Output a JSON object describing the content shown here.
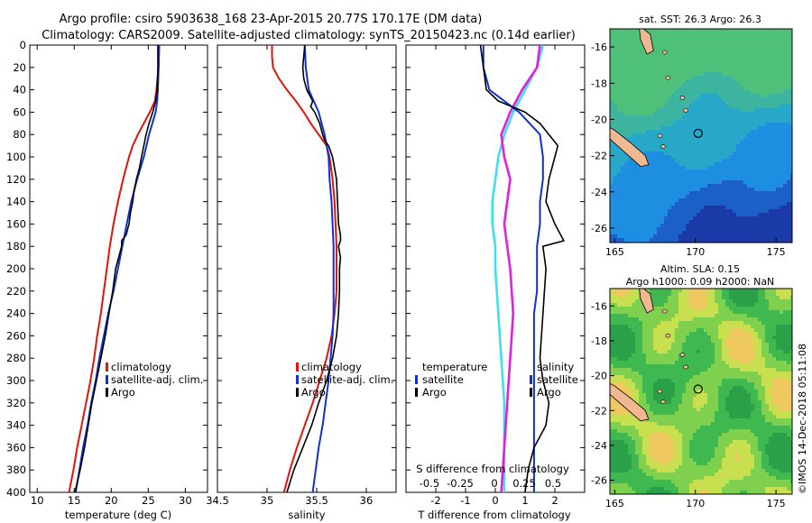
{
  "title": {
    "line1": "Argo profile: csiro 5903638_168 23-Apr-2015 20.77S 170.17E (DM data)",
    "line2": "Climatology: CARS2009. Satellite-adjusted climatology: synTS_20150423.nc (0.14d earlier)"
  },
  "watermark": "©IMOS 14-Dec-2018 05:11:08",
  "colors": {
    "climatology": "#e0140a",
    "satellite": "#1030d0",
    "argo": "#000000",
    "t_diff": "#3fe0e8",
    "s_diff": "#e020e0"
  },
  "chart_data": [
    {
      "type": "line",
      "id": "temperature",
      "xlabel": "temperature (deg C)",
      "ylabel": "depth",
      "xlim": [
        9,
        33
      ],
      "ylim": [
        400,
        0
      ],
      "x_ticks": [
        10,
        15,
        20,
        25,
        30
      ],
      "y_ticks": [
        0,
        20,
        40,
        60,
        80,
        100,
        120,
        140,
        160,
        180,
        200,
        220,
        240,
        260,
        280,
        300,
        320,
        340,
        360,
        380,
        400
      ],
      "legend": [
        "climatology",
        "satellite-adj. clim.",
        "Argo"
      ],
      "series": [
        {
          "name": "climatology",
          "depth": [
            0,
            20,
            40,
            50,
            60,
            70,
            80,
            90,
            100,
            120,
            140,
            160,
            180,
            200,
            220,
            240,
            260,
            280,
            300,
            320,
            340,
            360,
            380,
            400
          ],
          "values": [
            26.5,
            26.4,
            26.1,
            25.9,
            25.2,
            24.4,
            23.6,
            22.9,
            22.4,
            21.6,
            20.9,
            20.3,
            19.8,
            19.4,
            19.0,
            18.6,
            18.1,
            17.7,
            17.2,
            16.6,
            16.0,
            15.4,
            14.9,
            14.3
          ]
        },
        {
          "name": "satellite-adj. clim.",
          "depth": [
            0,
            20,
            40,
            50,
            60,
            80,
            100,
            120,
            140,
            160,
            180,
            200,
            220,
            240,
            260,
            280,
            300,
            320,
            340,
            360,
            380,
            400
          ],
          "values": [
            26.4,
            26.4,
            26.3,
            26.2,
            26.0,
            25.1,
            24.4,
            23.5,
            22.7,
            22.1,
            21.5,
            20.9,
            20.3,
            19.6,
            19.0,
            18.4,
            17.9,
            17.3,
            16.8,
            16.2,
            15.7,
            15.2
          ]
        },
        {
          "name": "Argo",
          "depth": [
            0,
            20,
            40,
            50,
            60,
            70,
            80,
            90,
            100,
            110,
            120,
            130,
            140,
            150,
            160,
            170,
            175,
            180,
            190,
            200,
            220,
            240,
            260,
            280,
            300,
            320,
            340,
            360,
            380,
            400
          ],
          "values": [
            26.3,
            26.3,
            26.2,
            26.0,
            25.6,
            25.1,
            24.7,
            24.4,
            24.1,
            23.8,
            23.4,
            23.1,
            22.9,
            22.6,
            22.4,
            22.0,
            21.4,
            21.4,
            21.0,
            20.6,
            20.2,
            19.7,
            19.2,
            18.6,
            18.0,
            17.4,
            16.9,
            16.4,
            15.8,
            15.1
          ]
        }
      ]
    },
    {
      "type": "line",
      "id": "salinity",
      "xlabel": "salinity",
      "xlim": [
        34.5,
        36.3
      ],
      "ylim": [
        400,
        0
      ],
      "x_ticks": [
        34.5,
        35,
        35.5,
        36
      ],
      "legend": [
        "climatology",
        "satellite-adj. clim.",
        "Argo"
      ],
      "series": [
        {
          "name": "climatology",
          "depth": [
            0,
            10,
            20,
            30,
            40,
            50,
            60,
            70,
            80,
            90,
            100,
            120,
            140,
            160,
            180,
            200,
            220,
            240,
            260,
            280,
            300,
            320,
            340,
            360,
            380,
            400
          ],
          "values": [
            35.05,
            35.05,
            35.06,
            35.12,
            35.2,
            35.29,
            35.37,
            35.44,
            35.52,
            35.6,
            35.63,
            35.66,
            35.68,
            35.69,
            35.7,
            35.7,
            35.7,
            35.68,
            35.65,
            35.6,
            35.53,
            35.46,
            35.38,
            35.3,
            35.23,
            35.17
          ]
        },
        {
          "name": "satellite-adj. clim.",
          "depth": [
            0,
            20,
            40,
            50,
            60,
            80,
            100,
            120,
            140,
            160,
            180,
            200,
            220,
            240,
            260,
            280,
            300,
            320,
            340,
            360,
            380,
            400
          ],
          "values": [
            35.38,
            35.39,
            35.42,
            35.47,
            35.52,
            35.58,
            35.62,
            35.63,
            35.65,
            35.66,
            35.67,
            35.67,
            35.67,
            35.67,
            35.66,
            35.64,
            35.62,
            35.59,
            35.56,
            35.52,
            35.49,
            35.46
          ]
        },
        {
          "name": "Argo",
          "depth": [
            0,
            10,
            20,
            30,
            40,
            50,
            55,
            60,
            70,
            80,
            85,
            90,
            95,
            100,
            110,
            120,
            140,
            160,
            170,
            175,
            180,
            190,
            200,
            220,
            240,
            260,
            280,
            300,
            320,
            340,
            360,
            380,
            400
          ],
          "values": [
            35.38,
            35.37,
            35.36,
            35.37,
            35.4,
            35.46,
            35.44,
            35.48,
            35.53,
            35.56,
            35.58,
            35.62,
            35.64,
            35.66,
            35.68,
            35.7,
            35.71,
            35.72,
            35.74,
            35.74,
            35.72,
            35.74,
            35.73,
            35.73,
            35.72,
            35.7,
            35.66,
            35.6,
            35.52,
            35.45,
            35.36,
            35.27,
            35.2
          ]
        }
      ]
    },
    {
      "type": "line",
      "id": "difference",
      "xlabel": "T difference from climatology",
      "top_axis_label": "S difference from climatology",
      "xlim": [
        -3,
        3
      ],
      "x_ticks": [
        -2,
        -1,
        0,
        1,
        2
      ],
      "s_ticks": [
        "-0.5",
        "-0.25",
        "0",
        "0.25",
        "0.5"
      ],
      "ylim": [
        400,
        0
      ],
      "legend": {
        "left_title": "temperature",
        "right_title": "salinity",
        "rows": [
          "satellite",
          "Argo"
        ]
      },
      "series": [
        {
          "name": "temperature satellite",
          "depth": [
            0,
            20,
            40,
            50,
            60,
            80,
            100,
            120,
            140,
            160,
            180,
            200,
            220,
            240,
            260,
            280,
            300,
            320,
            340,
            360,
            380,
            400
          ],
          "values": [
            -0.4,
            -0.4,
            -0.2,
            0.3,
            0.8,
            1.5,
            1.6,
            1.6,
            1.5,
            1.5,
            1.4,
            1.4,
            1.4,
            1.3,
            1.3,
            1.3,
            1.3,
            1.3,
            1.3,
            1.3,
            1.3,
            1.3
          ]
        },
        {
          "name": "temperature Argo",
          "depth": [
            0,
            20,
            40,
            50,
            60,
            70,
            80,
            90,
            100,
            120,
            140,
            160,
            175,
            180,
            200,
            240,
            280,
            300,
            320,
            340,
            360,
            380,
            400
          ],
          "values": [
            -0.5,
            -0.4,
            -0.3,
            0.1,
            1.0,
            1.5,
            1.8,
            2.1,
            2.0,
            1.8,
            1.7,
            2.0,
            2.3,
            1.6,
            1.7,
            1.6,
            1.5,
            1.6,
            1.8,
            1.7,
            1.3,
            1.1,
            1.0
          ]
        },
        {
          "name": "salinity satellite (T-diff scale)",
          "depth": [
            0,
            20,
            40,
            60,
            80,
            100,
            120,
            140,
            160,
            180,
            200,
            240,
            280,
            320,
            360,
            400
          ],
          "values": [
            1.6,
            1.4,
            1.0,
            0.6,
            0.3,
            0.1,
            0.0,
            -0.1,
            -0.1,
            0.0,
            0.0,
            0.1,
            0.2,
            0.3,
            0.3,
            0.3
          ]
        },
        {
          "name": "salinity Argo (T-diff scale)",
          "depth": [
            0,
            20,
            40,
            60,
            80,
            100,
            120,
            140,
            160,
            180,
            200,
            240,
            280,
            320,
            360,
            400
          ],
          "values": [
            1.5,
            1.4,
            0.9,
            0.5,
            0.2,
            0.3,
            0.5,
            0.4,
            0.3,
            0.4,
            0.5,
            0.6,
            0.5,
            0.4,
            0.3,
            0.2
          ]
        }
      ]
    },
    {
      "type": "heatmap",
      "id": "sst_map",
      "title": "sat. SST: 26.3 Argo: 26.3",
      "xlim": [
        164.7,
        176
      ],
      "ylim": [
        -26.8,
        -15
      ],
      "x_ticks": [
        165,
        170,
        175
      ],
      "y_ticks": [
        -16,
        -18,
        -20,
        -22,
        -24,
        -26
      ],
      "marker": {
        "lon": 170.17,
        "lat": -20.77
      }
    },
    {
      "type": "heatmap",
      "id": "sla_map",
      "title_line1": "Altim. SLA: 0.15",
      "title_line2": "Argo h1000: 0.09 h2000: NaN",
      "xlim": [
        164.7,
        176
      ],
      "ylim": [
        -26.8,
        -15
      ],
      "x_ticks": [
        165,
        170,
        175
      ],
      "y_ticks": [
        -16,
        -18,
        -20,
        -22,
        -24,
        -26
      ],
      "marker": {
        "lon": 170.17,
        "lat": -20.77
      }
    }
  ]
}
